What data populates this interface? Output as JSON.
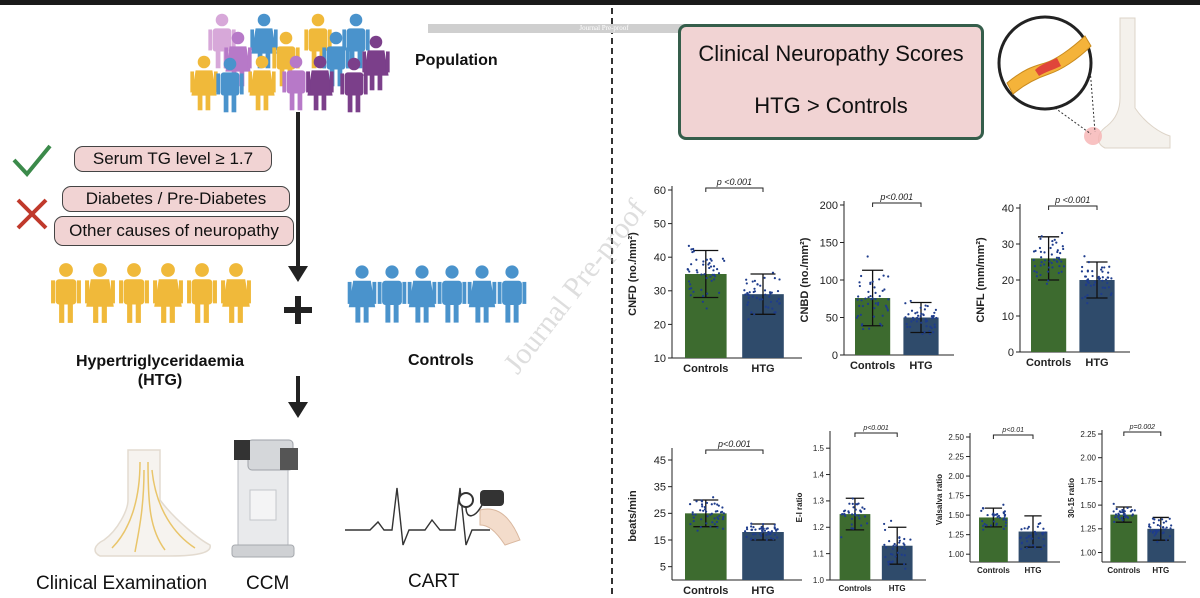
{
  "banner": "Journal Pre-proof",
  "watermark": "Journal Pre-proof",
  "left": {
    "population": "Population",
    "criteria_include": "Serum TG level ≥ 1.7",
    "criteria_exclude_1": "Diabetes / Pre-Diabetes",
    "criteria_exclude_2": "Other causes of neuropathy",
    "htg_label_1": "Hypertriglyceridaemia",
    "htg_label_2": "(HTG)",
    "controls_label": "Controls",
    "plus": "+",
    "exam_1": "Clinical Examination",
    "exam_2": "CCM",
    "exam_3": "CART"
  },
  "right": {
    "score_title": "Clinical Neuropathy Scores",
    "score_result": "HTG > Controls"
  },
  "colors": {
    "controls": "#3d6b2f",
    "htg": "#2f4b6b",
    "htg_person": "#f0b93a",
    "control_person": "#4a93cc",
    "box_fill": "#f1d3d3",
    "box_border": "#355e4b"
  },
  "chart_data": [
    {
      "type": "bar",
      "categories": [
        "Controls",
        "HTG"
      ],
      "values": [
        35,
        29
      ],
      "errors": [
        7,
        6
      ],
      "ylabel": "CNFD (no./mm²)",
      "ylim": [
        10,
        60
      ],
      "yticks": [
        10,
        20,
        30,
        40,
        50,
        60
      ],
      "pvalue": "p <0.001"
    },
    {
      "type": "bar",
      "categories": [
        "Controls",
        "HTG"
      ],
      "values": [
        76,
        50
      ],
      "errors": [
        37,
        20
      ],
      "ylabel": "CNBD (no./mm²)",
      "ylim": [
        0,
        200
      ],
      "yticks": [
        0,
        50,
        100,
        150,
        200
      ],
      "pvalue": "p<0.001"
    },
    {
      "type": "bar",
      "categories": [
        "Controls",
        "HTG"
      ],
      "values": [
        26,
        20
      ],
      "errors": [
        6,
        5
      ],
      "ylabel": "CNFL (mm/mm²)",
      "ylim": [
        0,
        40
      ],
      "yticks": [
        0,
        10,
        20,
        30,
        40
      ],
      "pvalue": "p <0.001"
    },
    {
      "type": "bar",
      "categories": [
        "Controls",
        "HTG"
      ],
      "values": [
        25,
        18
      ],
      "errors": [
        5,
        3
      ],
      "ylabel": "beats/min",
      "ylim": [
        0,
        48
      ],
      "yticks": [
        5,
        15,
        25,
        35,
        45
      ],
      "pvalue": "p<0.001"
    },
    {
      "type": "bar",
      "categories": [
        "Controls",
        "HTG"
      ],
      "values": [
        1.25,
        1.13
      ],
      "errors": [
        0.06,
        0.07
      ],
      "ylabel": "E-I ratio",
      "ylim": [
        1.0,
        1.55
      ],
      "yticks": [
        1.0,
        1.1,
        1.2,
        1.3,
        1.4,
        1.5
      ],
      "pvalue": "p<0.001"
    },
    {
      "type": "bar",
      "categories": [
        "Controls",
        "HTG"
      ],
      "values": [
        1.47,
        1.29
      ],
      "errors": [
        0.12,
        0.2
      ],
      "ylabel": "Valsalva ratio",
      "ylim": [
        0.9,
        2.5
      ],
      "yticks": [
        1.0,
        1.25,
        1.5,
        1.75,
        2.0,
        2.25,
        2.5
      ],
      "pvalue": "p<0.01"
    },
    {
      "type": "bar",
      "categories": [
        "Controls",
        "HTG"
      ],
      "values": [
        1.4,
        1.25
      ],
      "errors": [
        0.08,
        0.12
      ],
      "ylabel": "30-15 ratio",
      "ylim": [
        0.9,
        2.25
      ],
      "yticks": [
        1.0,
        1.25,
        1.5,
        1.75,
        2.0,
        2.25
      ],
      "pvalue": "p=0.002"
    }
  ]
}
